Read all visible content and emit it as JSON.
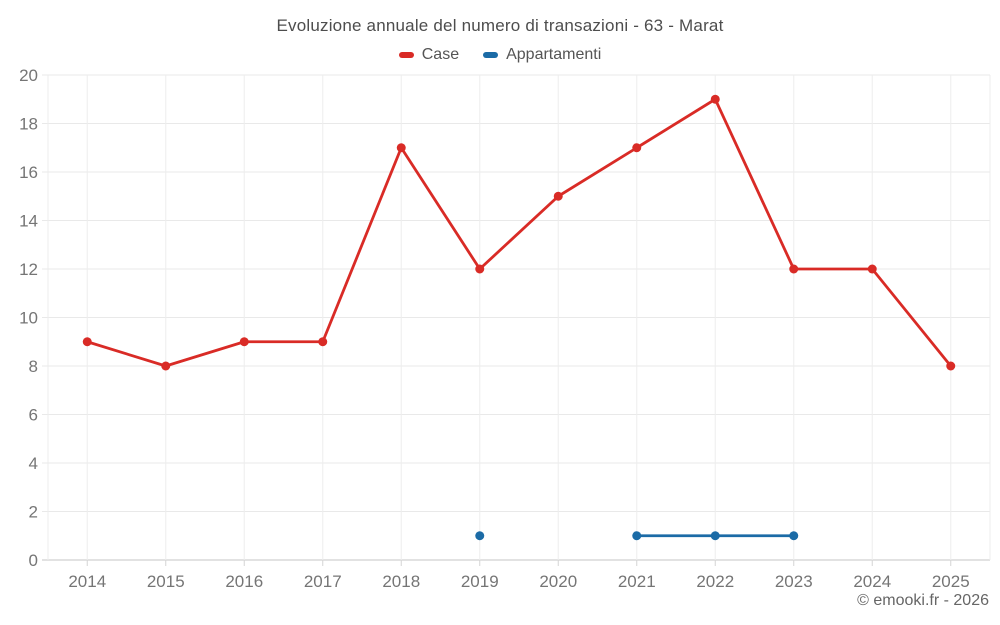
{
  "footer": {
    "text": "© emooki.fr - 2026"
  },
  "chart_data": {
    "type": "line",
    "title": "Evoluzione annuale del numero di transazioni - 63 - Marat",
    "categories": [
      "2014",
      "2015",
      "2016",
      "2017",
      "2018",
      "2019",
      "2020",
      "2021",
      "2022",
      "2023",
      "2024",
      "2025"
    ],
    "series": [
      {
        "name": "Case",
        "color": "#d92b26",
        "values": [
          9,
          8,
          9,
          9,
          17,
          12,
          15,
          17,
          19,
          12,
          12,
          8
        ]
      },
      {
        "name": "Appartamenti",
        "color": "#1b6ba6",
        "values": [
          null,
          null,
          null,
          null,
          null,
          1,
          null,
          1,
          1,
          1,
          null,
          null
        ]
      }
    ],
    "xlabel": "",
    "ylabel": "",
    "ylim": [
      0,
      20
    ],
    "ytick_step": 2,
    "grid": true,
    "legend_position": "top"
  }
}
